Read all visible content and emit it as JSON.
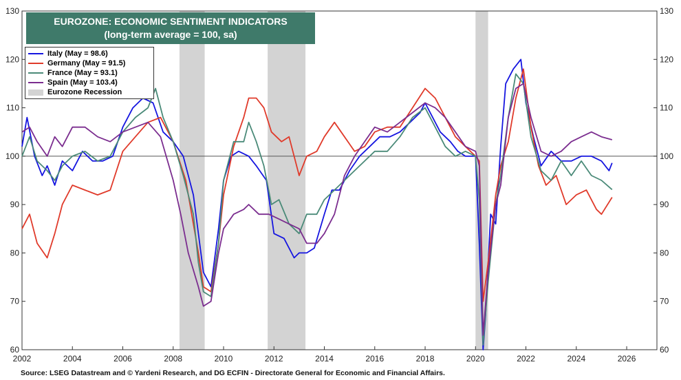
{
  "chart_data": {
    "type": "line",
    "title": "EUROZONE: ECONOMIC SENTIMENT INDICATORS",
    "subtitle": "(long-term average = 100, sa)",
    "xlim": [
      2002,
      2027.2
    ],
    "ylim": [
      60,
      130
    ],
    "x_ticks": [
      "2002",
      "2004",
      "2006",
      "2008",
      "2010",
      "2012",
      "2014",
      "2016",
      "2018",
      "2020",
      "2022",
      "2024",
      "2026"
    ],
    "y_ticks": [
      60,
      70,
      80,
      90,
      100,
      110,
      120,
      130
    ],
    "reference_line": 100,
    "grid": false,
    "legend_position": "top-left",
    "recessions": [
      [
        2008.25,
        2009.25
      ],
      [
        2011.75,
        2013.25
      ],
      [
        2020.0,
        2020.5
      ]
    ],
    "recession_label": "Eurozone Recession",
    "recession_color": "#d3d3d3",
    "series": [
      {
        "name": "Italy (May = 98.6)",
        "color": "#1515e0",
        "x": [
          2002.0,
          2002.2,
          2002.5,
          2002.8,
          2003.0,
          2003.3,
          2003.6,
          2004.0,
          2004.4,
          2004.8,
          2005.2,
          2005.6,
          2006.0,
          2006.4,
          2006.8,
          2007.2,
          2007.6,
          2008.0,
          2008.4,
          2008.8,
          2009.0,
          2009.2,
          2009.5,
          2009.8,
          2010.0,
          2010.3,
          2010.6,
          2011.0,
          2011.3,
          2011.7,
          2012.0,
          2012.4,
          2012.8,
          2013.0,
          2013.3,
          2013.6,
          2014.0,
          2014.3,
          2014.6,
          2015.0,
          2015.4,
          2015.8,
          2016.2,
          2016.6,
          2017.0,
          2017.4,
          2017.8,
          2018.0,
          2018.3,
          2018.6,
          2019.0,
          2019.3,
          2019.6,
          2020.0,
          2020.15,
          2020.3,
          2020.4,
          2020.6,
          2020.8,
          2021.0,
          2021.2,
          2021.5,
          2021.8,
          2022.0,
          2022.3,
          2022.6,
          2023.0,
          2023.4,
          2023.8,
          2024.2,
          2024.6,
          2025.0,
          2025.3,
          2025.42
        ],
        "values": [
          102,
          108,
          100,
          96,
          98,
          94,
          99,
          97,
          101,
          99,
          99,
          100,
          106,
          110,
          112,
          111,
          105,
          103,
          100,
          92,
          84,
          76,
          73,
          85,
          95,
          100,
          101,
          100,
          98,
          95,
          84,
          83,
          79,
          80,
          80,
          81,
          88,
          93,
          93,
          97,
          100,
          102,
          104,
          104,
          105,
          107,
          109,
          111,
          108,
          105,
          103,
          101,
          100,
          100,
          82,
          60,
          67,
          88,
          86,
          102,
          115,
          118,
          120,
          111,
          104,
          98,
          101,
          99,
          99,
          100,
          100,
          99,
          97,
          98.6
        ]
      },
      {
        "name": "Germany (May = 91.5)",
        "color": "#e03a2a",
        "x": [
          2002.0,
          2002.3,
          2002.6,
          2003.0,
          2003.3,
          2003.6,
          2004.0,
          2004.5,
          2005.0,
          2005.5,
          2006.0,
          2006.5,
          2007.0,
          2007.5,
          2008.0,
          2008.5,
          2009.0,
          2009.2,
          2009.5,
          2009.8,
          2010.0,
          2010.4,
          2010.8,
          2011.0,
          2011.3,
          2011.6,
          2011.9,
          2012.3,
          2012.6,
          2013.0,
          2013.3,
          2013.7,
          2014.0,
          2014.4,
          2014.8,
          2015.2,
          2015.6,
          2016.0,
          2016.5,
          2017.0,
          2017.5,
          2018.0,
          2018.4,
          2018.8,
          2019.2,
          2019.6,
          2020.0,
          2020.15,
          2020.3,
          2020.5,
          2020.8,
          2021.0,
          2021.3,
          2021.6,
          2021.9,
          2022.2,
          2022.5,
          2022.8,
          2023.2,
          2023.6,
          2024.0,
          2024.4,
          2024.8,
          2025.0,
          2025.42
        ],
        "values": [
          85,
          88,
          82,
          79,
          84,
          90,
          94,
          93,
          92,
          93,
          101,
          104,
          107,
          108,
          103,
          95,
          80,
          73,
          72,
          82,
          92,
          102,
          108,
          112,
          112,
          110,
          105,
          103,
          104,
          96,
          100,
          101,
          104,
          107,
          104,
          101,
          102,
          105,
          106,
          106,
          110,
          114,
          112,
          108,
          104,
          102,
          100,
          99,
          70,
          78,
          92,
          98,
          103,
          112,
          118,
          106,
          98,
          94,
          96,
          90,
          92,
          93,
          89,
          88,
          91.5
        ]
      },
      {
        "name": "France (May = 93.1)",
        "color": "#4a8a78",
        "x": [
          2002.0,
          2002.3,
          2002.6,
          2003.0,
          2003.3,
          2003.6,
          2004.0,
          2004.5,
          2005.0,
          2005.5,
          2006.0,
          2006.5,
          2007.0,
          2007.3,
          2007.6,
          2008.0,
          2008.4,
          2008.8,
          2009.0,
          2009.2,
          2009.5,
          2009.8,
          2010.0,
          2010.4,
          2010.8,
          2011.0,
          2011.3,
          2011.6,
          2011.9,
          2012.2,
          2012.6,
          2013.0,
          2013.3,
          2013.7,
          2014.0,
          2014.4,
          2014.8,
          2015.2,
          2015.6,
          2016.0,
          2016.5,
          2017.0,
          2017.5,
          2018.0,
          2018.4,
          2018.8,
          2019.2,
          2019.6,
          2020.0,
          2020.15,
          2020.3,
          2020.5,
          2020.8,
          2021.0,
          2021.3,
          2021.6,
          2021.9,
          2022.2,
          2022.6,
          2023.0,
          2023.4,
          2023.8,
          2024.2,
          2024.6,
          2025.0,
          2025.42
        ],
        "values": [
          100,
          104,
          99,
          97,
          95,
          98,
          100,
          101,
          99,
          100,
          105,
          108,
          110,
          114,
          108,
          103,
          96,
          88,
          78,
          72,
          71,
          82,
          95,
          103,
          103,
          107,
          103,
          98,
          90,
          91,
          86,
          84,
          88,
          88,
          91,
          93,
          95,
          97,
          99,
          101,
          101,
          104,
          108,
          110,
          106,
          102,
          100,
          101,
          100,
          91,
          61,
          74,
          90,
          96,
          108,
          117,
          115,
          104,
          97,
          95,
          99,
          96,
          99,
          96,
          95,
          93.1
        ]
      },
      {
        "name": "Spain (May = 103.4)",
        "color": "#7b2d8f",
        "x": [
          2002.0,
          2002.3,
          2002.6,
          2003.0,
          2003.3,
          2003.6,
          2004.0,
          2004.5,
          2005.0,
          2005.5,
          2006.0,
          2006.5,
          2007.0,
          2007.5,
          2008.0,
          2008.3,
          2008.6,
          2009.0,
          2009.2,
          2009.5,
          2009.8,
          2010.0,
          2010.4,
          2010.8,
          2011.0,
          2011.4,
          2011.8,
          2012.2,
          2012.6,
          2013.0,
          2013.3,
          2013.7,
          2014.0,
          2014.4,
          2014.8,
          2015.2,
          2015.6,
          2016.0,
          2016.5,
          2017.0,
          2017.5,
          2018.0,
          2018.4,
          2018.8,
          2019.2,
          2019.6,
          2020.0,
          2020.15,
          2020.3,
          2020.5,
          2020.8,
          2021.0,
          2021.3,
          2021.6,
          2021.9,
          2022.2,
          2022.6,
          2023.0,
          2023.4,
          2023.8,
          2024.2,
          2024.6,
          2025.0,
          2025.42
        ],
        "values": [
          105,
          106,
          103,
          100,
          104,
          102,
          106,
          106,
          104,
          103,
          105,
          106,
          107,
          104,
          95,
          88,
          80,
          73,
          69,
          70,
          80,
          85,
          88,
          89,
          90,
          88,
          88,
          87,
          86,
          85,
          82,
          82,
          84,
          88,
          96,
          100,
          103,
          106,
          105,
          107,
          109,
          111,
          110,
          108,
          105,
          102,
          101,
          98,
          63,
          76,
          90,
          94,
          108,
          114,
          115,
          108,
          101,
          100,
          101,
          103,
          104,
          105,
          104,
          103.4
        ]
      }
    ]
  },
  "source_text": "Source: LSEG Datastream and © Yardeni Research, and DG ECFIN - Directorate General for Economic and Financial Affairs."
}
